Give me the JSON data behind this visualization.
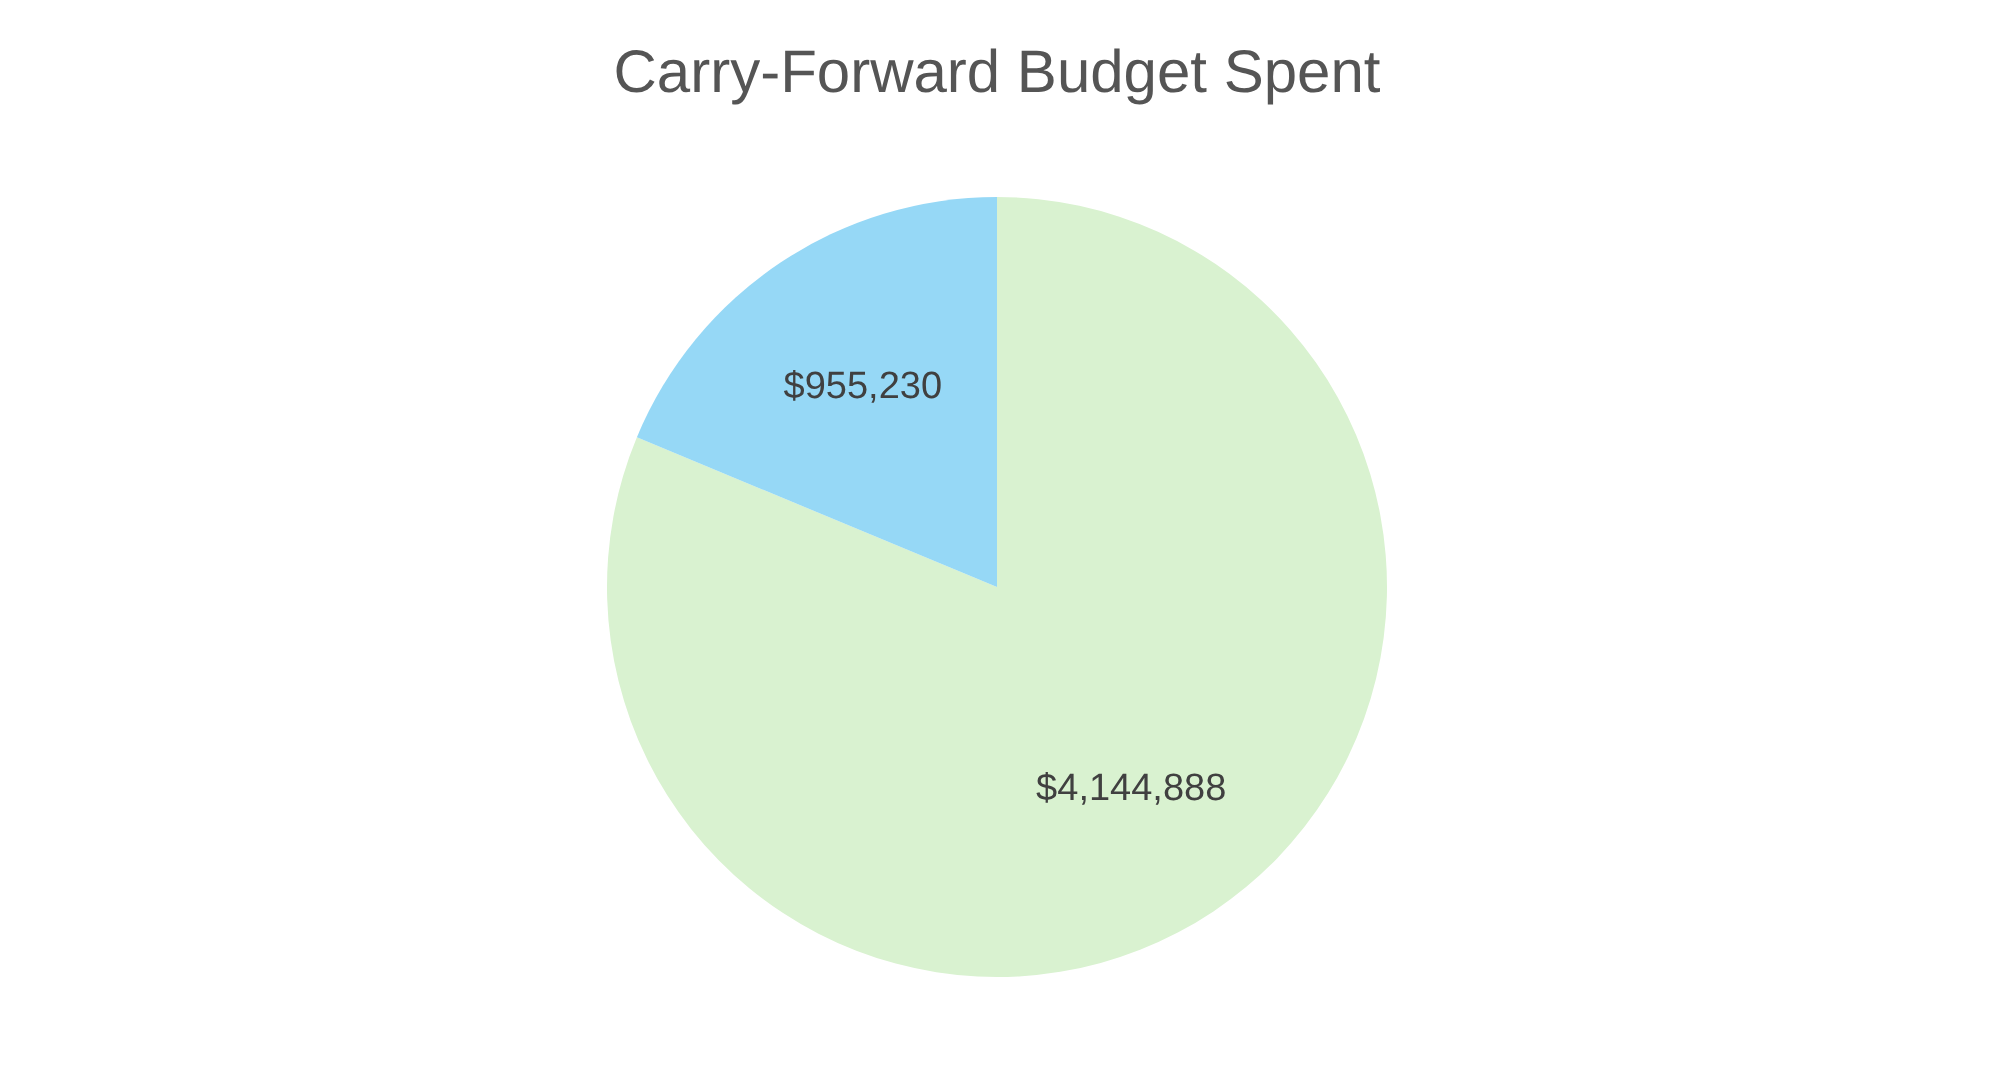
{
  "chart_data": {
    "type": "pie",
    "title": "Carry-Forward Budget Spent",
    "categories": [
      null,
      null
    ],
    "values": [
      4144888,
      955230
    ],
    "colors": [
      "#d9f2d0",
      "#96d8f6"
    ],
    "value_labels": [
      "$4,144,888",
      "$955,230"
    ]
  }
}
